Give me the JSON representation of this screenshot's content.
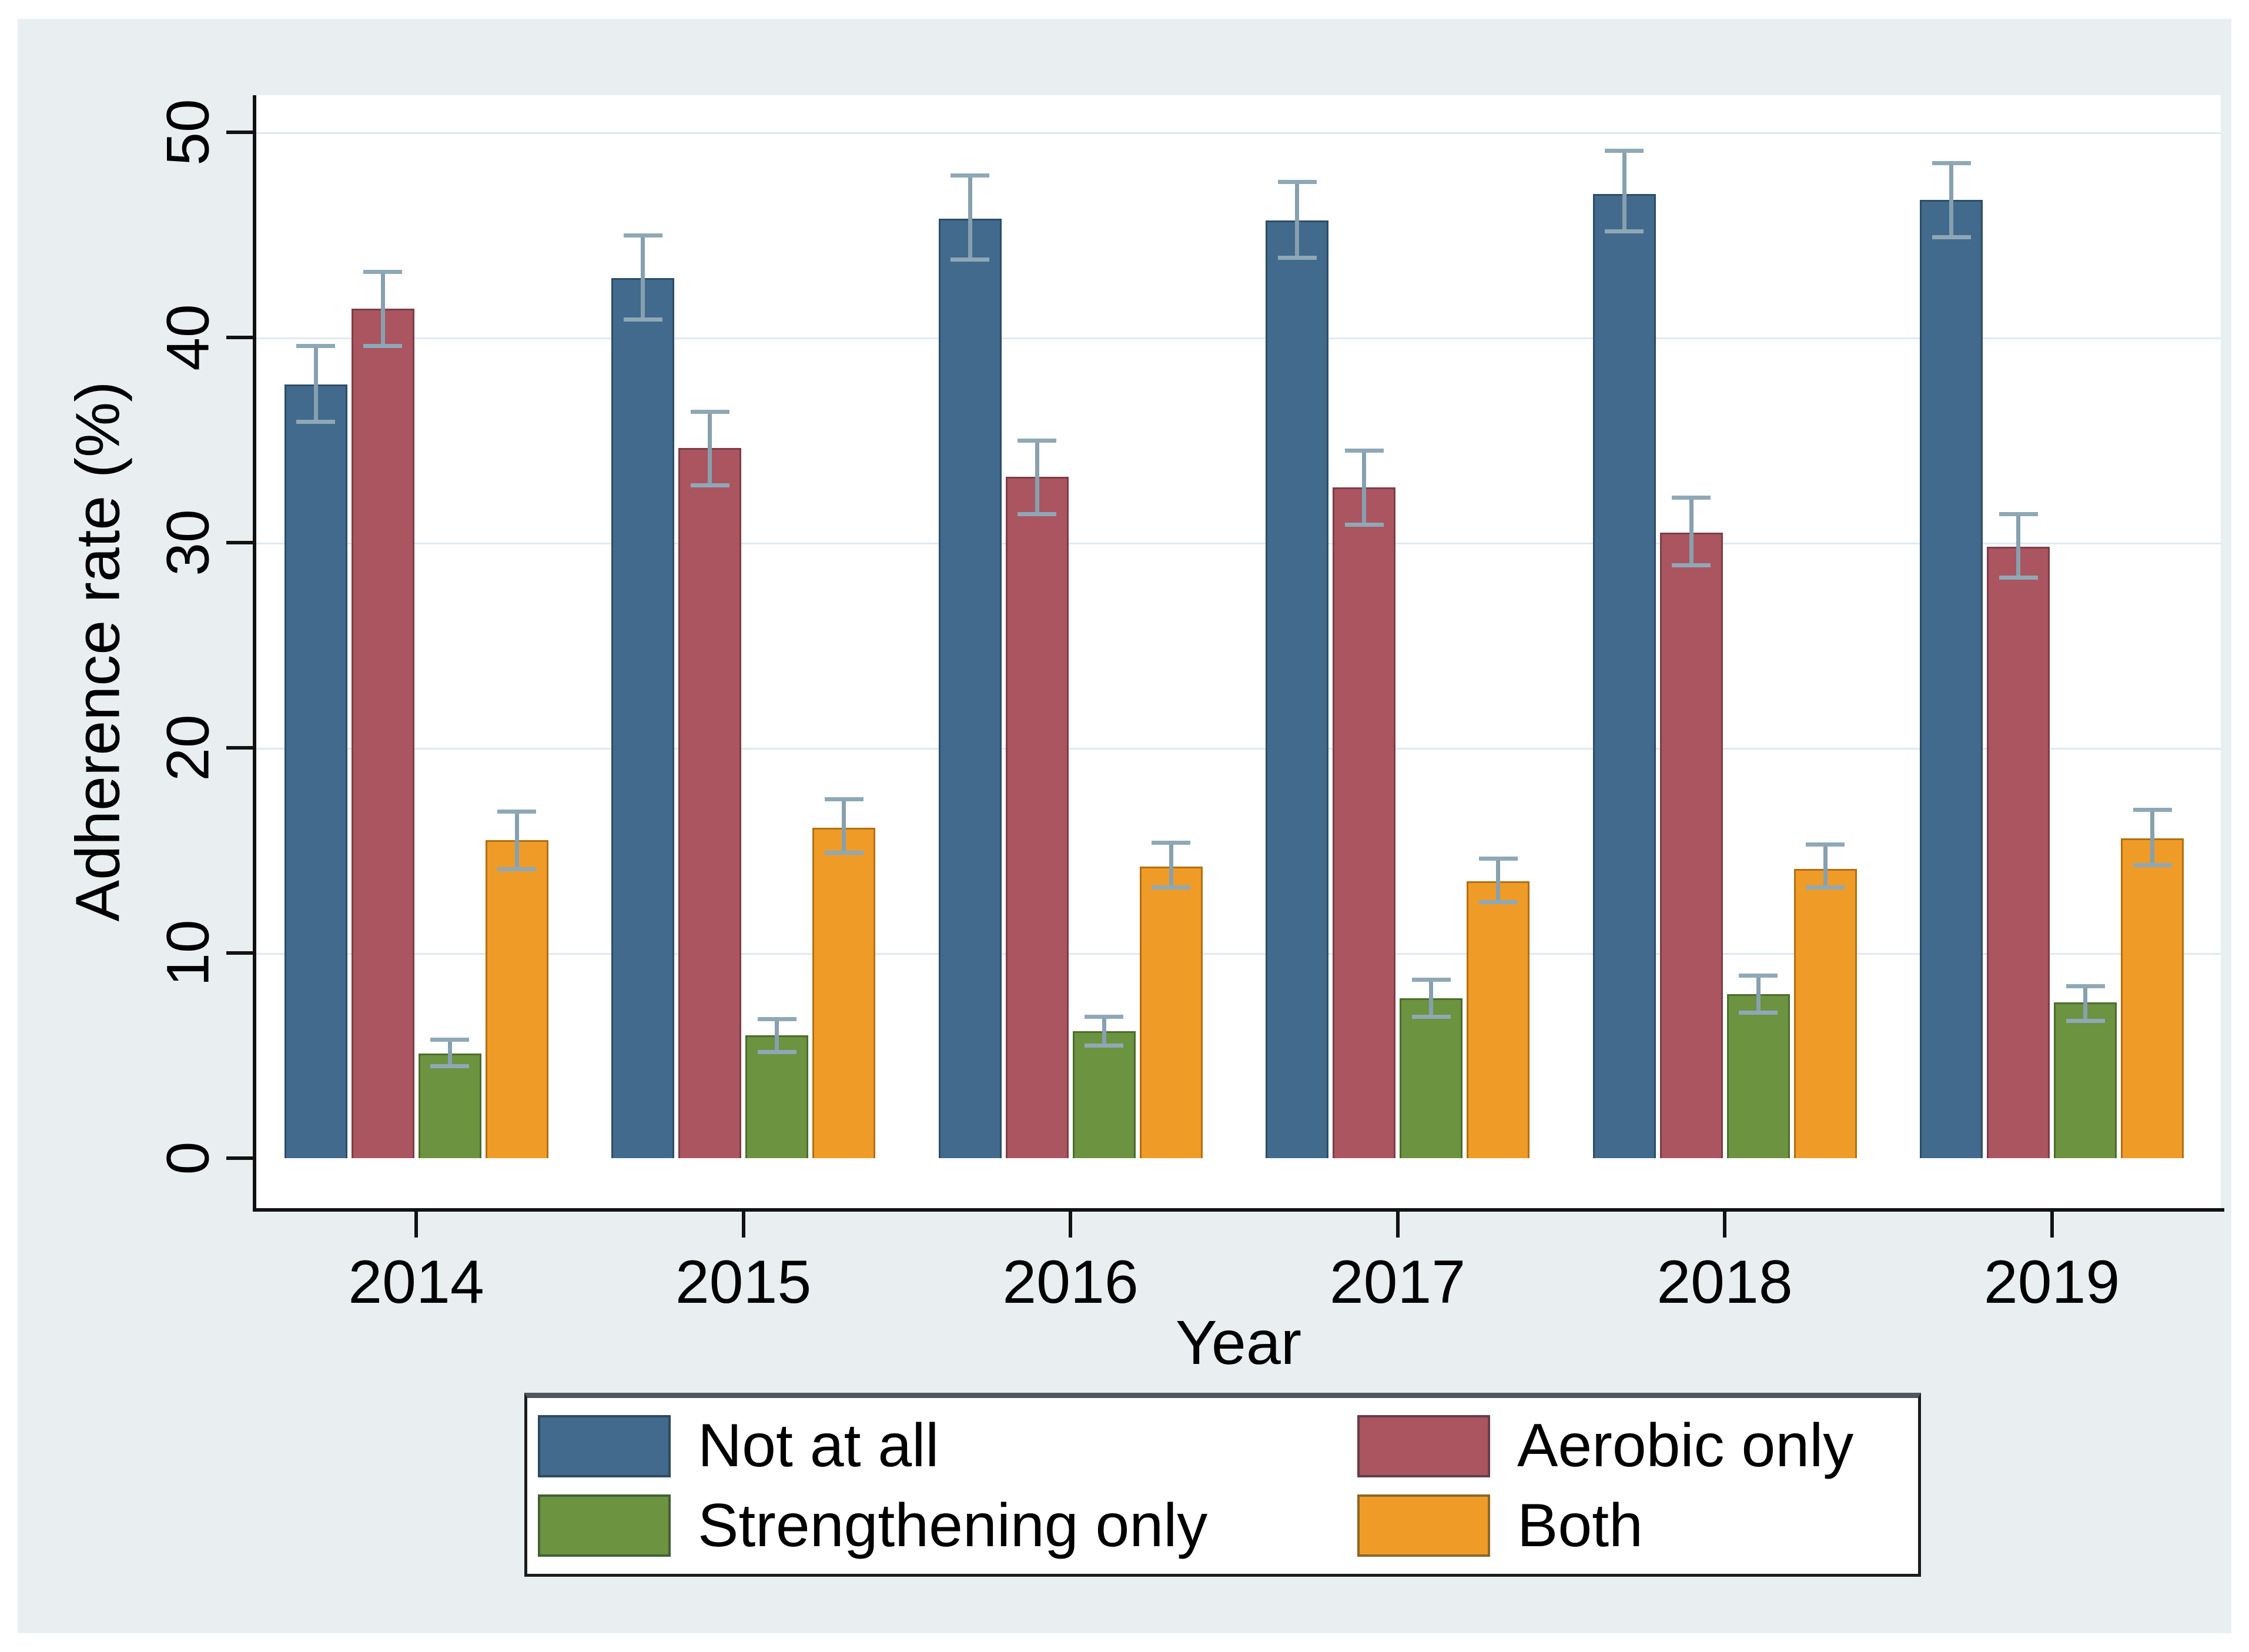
{
  "figure": {
    "y_axis_title": "Adherence rate (%)",
    "x_axis_title": "Year"
  },
  "colors": {
    "page_background": "#ffffff",
    "panel_background": "#e9eff1",
    "plot_background": "#ffffff",
    "gridline": "#dfe9f0",
    "axis_line": "#121212",
    "error_bar": "#87a0ae",
    "not_at_all": "#426a8c",
    "aerobic_only": "#aa5560",
    "strengthening_only": "#6b9340",
    "both": "#ef9b27",
    "not_at_all_border": "#2d4d69",
    "aerobic_only_border": "#7e3d47",
    "strengthening_only_border": "#4d6d2c",
    "both_border": "#b26f12"
  },
  "legend": {
    "items": [
      {
        "label": "Not at all",
        "color_key": "not_at_all"
      },
      {
        "label": "Aerobic only",
        "color_key": "aerobic_only"
      },
      {
        "label": "Strengthening only",
        "color_key": "strengthening_only"
      },
      {
        "label": "Both",
        "color_key": "both"
      }
    ]
  },
  "chart_data": {
    "type": "bar",
    "title": "",
    "xlabel": "Year",
    "ylabel": "Adherence rate (%)",
    "categories": [
      "2014",
      "2015",
      "2016",
      "2017",
      "2018",
      "2019"
    ],
    "y_ticks": [
      0,
      10,
      20,
      30,
      40,
      50
    ],
    "ylim": [
      0,
      51.8
    ],
    "grid": "horizontal gridlines at 10,20,30,40,50",
    "legend_position": "bottom",
    "error_bars": "95% confidence intervals with caps",
    "series": [
      {
        "name": "Not at all",
        "color_key": "not_at_all",
        "values": [
          37.7,
          42.9,
          45.8,
          45.7,
          47.0,
          46.7
        ],
        "ci_low": [
          35.9,
          40.9,
          43.8,
          43.9,
          45.2,
          44.9
        ],
        "ci_high": [
          39.6,
          45.0,
          47.9,
          47.6,
          49.1,
          48.5
        ]
      },
      {
        "name": "Aerobic only",
        "color_key": "aerobic_only",
        "values": [
          41.4,
          34.6,
          33.2,
          32.7,
          30.5,
          29.8
        ],
        "ci_low": [
          39.6,
          32.8,
          31.4,
          30.9,
          28.9,
          28.3
        ],
        "ci_high": [
          43.2,
          36.4,
          35.0,
          34.5,
          32.2,
          31.4
        ]
      },
      {
        "name": "Strengthening only",
        "color_key": "strengthening_only",
        "values": [
          5.1,
          6.0,
          6.2,
          7.8,
          8.0,
          7.6
        ],
        "ci_low": [
          4.5,
          5.2,
          5.5,
          6.9,
          7.1,
          6.7
        ],
        "ci_high": [
          5.8,
          6.8,
          6.9,
          8.7,
          8.9,
          8.4
        ]
      },
      {
        "name": "Both",
        "color_key": "both",
        "values": [
          15.5,
          16.1,
          14.2,
          13.5,
          14.1,
          15.6
        ],
        "ci_low": [
          14.1,
          14.9,
          13.2,
          12.5,
          13.2,
          14.3
        ],
        "ci_high": [
          16.9,
          17.5,
          15.4,
          14.6,
          15.3,
          17.0
        ]
      }
    ]
  }
}
